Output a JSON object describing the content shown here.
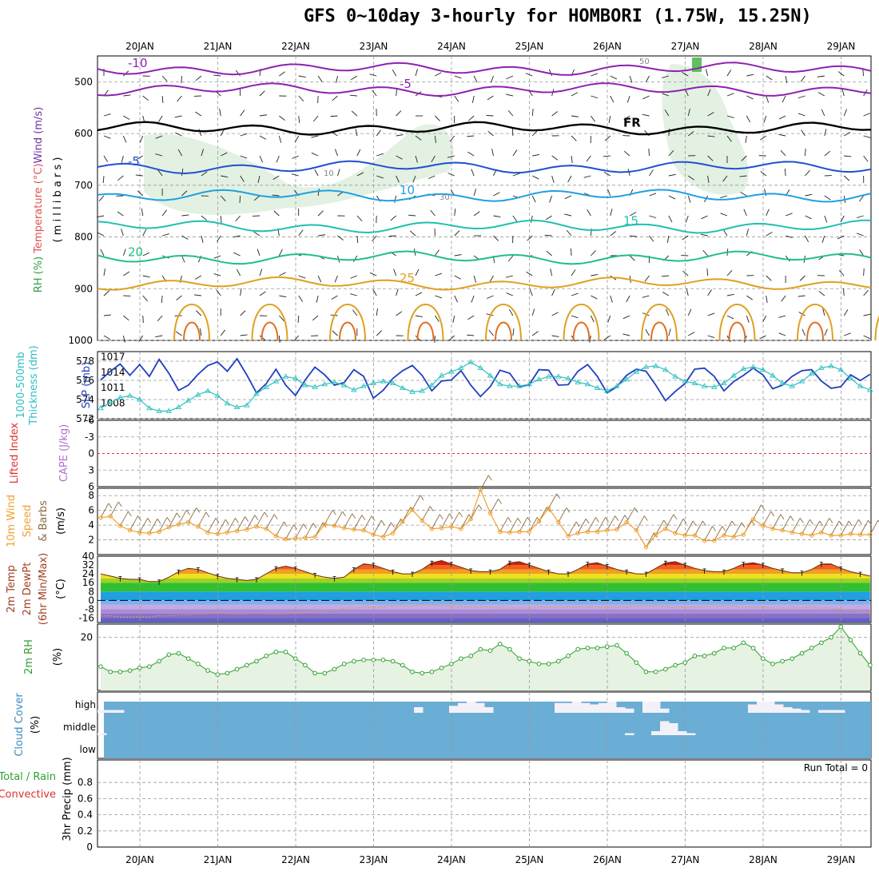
{
  "title": "GFS 0~10day 3-hourly for HOMBORI (1.75W, 15.25N)",
  "colors": {
    "slp": "#2040c0",
    "thickness": "#30c0c0",
    "wind_speed": "#f0a030",
    "barb": "#8a6a40",
    "rh": "#30a030",
    "cloud_bg": "#6aadd5",
    "cloud": "#f4f0f8",
    "li": "#e03030",
    "cape": "#b070d0",
    "temp_colors": [
      "#20a0e0",
      "#30c030",
      "#a0d020",
      "#f0e020",
      "#f0a020",
      "#f06020",
      "#d02010",
      "#901000"
    ],
    "cold_colors": [
      "#5050c0",
      "#8060c0",
      "#a080d0",
      "#c0a0e0"
    ]
  },
  "chart_data": [
    {
      "panel": "upper-air",
      "type": "contour",
      "days": [
        "20JAN",
        "21JAN",
        "22JAN",
        "23JAN",
        "24JAN",
        "25JAN",
        "26JAN",
        "27JAN",
        "28JAN",
        "29JAN"
      ],
      "y_label_parts": [
        "Wind (m/s)",
        "Temperature (°C)",
        "RH (%)"
      ],
      "y_axis_label": "( m i l l i b a r s )",
      "ylim": [
        1000,
        450
      ],
      "y_ticks": [
        500,
        600,
        700,
        800,
        900,
        1000
      ],
      "isotherms": [
        {
          "value": -10,
          "label": "-10",
          "pressure": 475,
          "color": "#9020b0"
        },
        {
          "value": -5,
          "label": "-5",
          "pressure": 515,
          "color": "#9020b0"
        },
        {
          "value": 0,
          "label": "FR",
          "pressure": 590,
          "color": "#000000"
        },
        {
          "value": -5,
          "label": "-5",
          "pressure": 665,
          "color": "#2050d0"
        },
        {
          "value": 10,
          "label": "10",
          "pressure": 720,
          "color": "#20a0e0"
        },
        {
          "value": 15,
          "label": "15",
          "pressure": 780,
          "color": "#20c0b0"
        },
        {
          "value": 20,
          "label": "20",
          "pressure": 840,
          "color": "#20c080"
        },
        {
          "value": 25,
          "label": "25",
          "pressure": 890,
          "color": "#e0a020"
        }
      ],
      "rh_contour_labels": [
        "10",
        "30",
        "50"
      ]
    },
    {
      "panel": "slp-thickness",
      "type": "line",
      "y_label_parts": [
        "1000-500mb",
        "Thickness (dm)",
        "SLP (mb)"
      ],
      "left_ylim": [
        572,
        579
      ],
      "left_ticks": [
        "572",
        "574",
        "576",
        "578"
      ],
      "right_ylim": [
        1005,
        1018
      ],
      "right_ticks": [
        "1008",
        "1011",
        "1014",
        "1017"
      ],
      "series": [
        {
          "name": "SLP (mb)",
          "axis": "right",
          "values": [
            1012.5,
            1014.2,
            1015.6,
            1013.4,
            1015.5,
            1013.2,
            1016.5,
            1013.8,
            1010.5,
            1011.5,
            1013.6,
            1015.3,
            1016,
            1014.2,
            1016.6,
            1013.5,
            1010,
            1011.8,
            1014.6,
            1011.5,
            1009.5,
            1012.5,
            1015,
            1013.5,
            1011.5,
            1012,
            1014.5,
            1013.2,
            1009,
            1010.5,
            1012.8,
            1014.3,
            1015.3,
            1013.4,
            1010.4,
            1012.3,
            1012.5,
            1014.3,
            1011.5,
            1009.3,
            1011.2,
            1014.4,
            1013.8,
            1011.2,
            1011.6,
            1014.5,
            1014.4,
            1011.5,
            1011.6,
            1014.2,
            1015.5,
            1013.2,
            1010,
            1011.2,
            1013.4,
            1014.6,
            1014.2,
            1011.5,
            1008.5,
            1010.3,
            1011.8,
            1014.6,
            1014.8,
            1013.2,
            1010.4,
            1012.2,
            1013.4,
            1014.8,
            1013.5,
            1010.8,
            1011.5,
            1013.2,
            1014.3,
            1014.5,
            1012.3,
            1010.9,
            1011.2,
            1013.5,
            1012.4,
            1013.6
          ]
        },
        {
          "name": "1000-500mb Thickness (dm)",
          "axis": "left",
          "values": [
            573.1,
            573.7,
            574.2,
            574.4,
            574.0,
            573.1,
            572.8,
            572.8,
            573.2,
            573.9,
            574.5,
            574.9,
            574.4,
            573.6,
            573.2,
            573.4,
            574.6,
            575.3,
            575.9,
            576.4,
            576.2,
            575.5,
            575.3,
            575.6,
            575.8,
            575.5,
            575.0,
            575.4,
            575.7,
            575.9,
            575.7,
            575.2,
            574.8,
            574.9,
            575.5,
            576.5,
            576.9,
            577.3,
            577.9,
            577.3,
            576.5,
            575.6,
            575.4,
            575.4,
            575.6,
            576.1,
            576.4,
            576.4,
            576.2,
            575.8,
            575.6,
            575.2,
            574.9,
            575.4,
            576.1,
            576.9,
            577.4,
            577.5,
            577.1,
            576.4,
            575.9,
            575.7,
            575.4,
            575.3,
            575.7,
            576.5,
            577.2,
            577.4,
            577.1,
            576.5,
            575.7,
            575.4,
            575.9,
            576.7,
            577.3,
            577.5,
            577.1,
            576.2,
            575.4,
            575.0
          ]
        }
      ]
    },
    {
      "panel": "lifted-index",
      "type": "line",
      "y_label_parts": [
        "Lifted Index",
        "CAPE (J/kg)"
      ],
      "ylim": [
        -6,
        6
      ],
      "y_ticks": [
        "-6",
        "-3",
        "0",
        "3",
        "6"
      ],
      "reference_line": 0
    },
    {
      "panel": "wind-10m",
      "type": "line",
      "y_label_parts": [
        "10m Wind",
        "Speed",
        "& Barbs",
        "(m/s)"
      ],
      "ylim": [
        0,
        9
      ],
      "y_ticks": [
        "2",
        "4",
        "6",
        "8"
      ],
      "series": [
        {
          "name": "Speed",
          "values": [
            5.0,
            5.2,
            3.9,
            3.3,
            3.0,
            2.9,
            3.1,
            3.7,
            4.1,
            4.4,
            3.8,
            3.0,
            2.8,
            3.0,
            3.2,
            3.4,
            3.8,
            3.5,
            2.5,
            2.1,
            2.2,
            2.3,
            2.4,
            4.1,
            3.9,
            3.6,
            3.4,
            3.3,
            2.7,
            2.4,
            2.9,
            4.5,
            6.1,
            4.6,
            3.5,
            3.6,
            3.8,
            3.5,
            4.8,
            8.8,
            5.6,
            3.1,
            3.0,
            3.1,
            3.1,
            4.5,
            6.3,
            4.4,
            2.5,
            2.9,
            3.1,
            3.1,
            3.3,
            3.4,
            4.4,
            3.3,
            1.0,
            2.7,
            3.5,
            2.9,
            2.6,
            2.6,
            1.9,
            1.9,
            2.6,
            2.4,
            2.7,
            4.8,
            3.9,
            3.5,
            3.3,
            3.0,
            2.8,
            2.6,
            3.0,
            2.6,
            2.6,
            2.8,
            2.7,
            2.7
          ]
        }
      ]
    },
    {
      "panel": "temp-2m",
      "type": "area",
      "y_label_parts": [
        "2m Temp",
        "2m DewPt",
        "(6hr Min/Max)",
        "(°C)"
      ],
      "ylim": [
        -20,
        40
      ],
      "y_ticks": [
        "40",
        "32",
        "24",
        "16",
        "8",
        "0",
        "-8",
        "-16"
      ],
      "series": [
        {
          "name": "2m Temp",
          "values": [
            24,
            22,
            20,
            19,
            19,
            17,
            17,
            21,
            26,
            29,
            28,
            25,
            22,
            20,
            19,
            18,
            19,
            24,
            29,
            31,
            29,
            26,
            23,
            21,
            20,
            21,
            28,
            33,
            32,
            29,
            26,
            24,
            24,
            28,
            34,
            36,
            33,
            30,
            27,
            26,
            26,
            28,
            34,
            35,
            32,
            29,
            26,
            24,
            24,
            28,
            33,
            34,
            31,
            28,
            26,
            24,
            24,
            29,
            34,
            35,
            32,
            29,
            27,
            26,
            26,
            29,
            33,
            34,
            32,
            29,
            27,
            25,
            25,
            28,
            33,
            33,
            29,
            26,
            24,
            22
          ]
        },
        {
          "name": "2m DewPt",
          "values": [
            -14,
            -14,
            -15,
            -15,
            -15,
            -15,
            -14,
            -14,
            -13,
            -13,
            -12,
            -12,
            -11,
            -12,
            -12,
            -12,
            -11,
            -12,
            -12,
            -12,
            -11,
            -11,
            -10,
            -10,
            -9,
            -7,
            -7,
            -6,
            -6,
            -6,
            -5,
            -5,
            -5,
            -4,
            -4,
            -5,
            -5,
            -6,
            -6,
            -6,
            -6,
            -7,
            -7,
            -7,
            -7,
            -6,
            -6,
            -6,
            -6,
            -6,
            -6,
            -6,
            -6,
            -6,
            -6,
            -5,
            -5,
            -5,
            -6,
            -6,
            -6,
            -6,
            -6,
            -5,
            -5,
            -5,
            -6,
            -6,
            -6,
            -7,
            -7,
            -7,
            -7,
            -6,
            -7,
            -7,
            -8,
            -9,
            -10,
            -10
          ]
        }
      ]
    },
    {
      "panel": "rh-2m",
      "type": "area",
      "y_label_parts": [
        "2m RH",
        "(%)"
      ],
      "ylim": [
        0,
        25
      ],
      "y_ticks": [
        "20"
      ],
      "series": [
        {
          "name": "2m RH",
          "values": [
            9,
            7,
            7,
            7.5,
            8.5,
            9,
            11,
            13.5,
            14,
            12,
            10,
            7.5,
            6,
            6.5,
            8,
            9.5,
            11,
            13,
            14.5,
            14.5,
            12,
            9.5,
            6.5,
            6.5,
            8,
            10,
            11,
            11.5,
            11.5,
            11.5,
            11,
            9.5,
            7,
            6.5,
            7,
            8.5,
            10,
            12,
            13,
            15.5,
            15,
            17.5,
            15.5,
            12,
            11,
            10,
            10,
            11,
            13,
            15.5,
            16,
            16,
            16.5,
            17,
            14,
            10.5,
            7,
            7,
            8,
            9.5,
            10.5,
            13,
            13,
            14,
            16,
            16,
            18,
            16,
            12,
            10,
            11,
            12,
            14,
            16,
            18,
            20,
            24,
            19,
            14,
            9.5
          ]
        }
      ]
    },
    {
      "panel": "cloud-cover",
      "type": "heatmap",
      "y_label_parts": [
        "Cloud Cover",
        "(%)"
      ],
      "levels": [
        "high",
        "middle",
        "low"
      ],
      "series": [
        {
          "name": "high",
          "values": [
            20,
            20,
            20,
            0,
            0,
            0,
            0,
            0,
            0,
            0,
            0,
            0,
            0,
            0,
            0,
            0,
            0,
            0,
            0,
            0,
            0,
            0,
            0,
            0,
            0,
            0,
            0,
            0,
            0,
            0,
            0,
            0,
            0,
            0,
            0,
            0,
            40,
            0,
            0,
            0,
            50,
            70,
            80,
            70,
            40,
            0,
            0,
            0,
            0,
            0,
            0,
            0,
            70,
            70,
            80,
            70,
            60,
            70,
            80,
            40,
            30,
            0,
            80,
            80,
            30,
            0,
            0,
            0,
            0,
            0,
            0,
            0,
            0,
            0,
            60,
            80,
            80,
            60,
            40,
            30,
            20,
            0,
            20,
            20,
            20,
            0,
            0,
            0
          ]
        },
        {
          "name": "middle",
          "values": [
            10,
            0,
            0,
            0,
            0,
            0,
            0,
            0,
            0,
            0,
            0,
            0,
            0,
            0,
            0,
            0,
            0,
            0,
            0,
            0,
            0,
            0,
            0,
            0,
            0,
            0,
            0,
            0,
            0,
            0,
            0,
            0,
            0,
            0,
            0,
            0,
            0,
            0,
            0,
            0,
            0,
            0,
            0,
            0,
            0,
            0,
            0,
            0,
            0,
            0,
            0,
            0,
            0,
            0,
            0,
            0,
            0,
            0,
            0,
            0,
            10,
            0,
            0,
            20,
            70,
            60,
            20,
            10,
            0,
            0,
            0,
            0,
            0,
            0,
            0,
            0,
            0,
            0,
            0,
            0,
            0,
            0,
            0,
            0,
            0,
            0,
            0,
            0
          ]
        },
        {
          "name": "low",
          "values": []
        }
      ]
    },
    {
      "panel": "precip",
      "type": "bar",
      "y_label_parts": [
        "Total / Rain",
        "Convective",
        "3hr Precip (mm)"
      ],
      "ylim": [
        0,
        1
      ],
      "y_ticks": [
        "0",
        "0.2",
        "0.4",
        "0.6",
        "0.8"
      ],
      "run_total": "Run Total = 0",
      "series": []
    }
  ]
}
